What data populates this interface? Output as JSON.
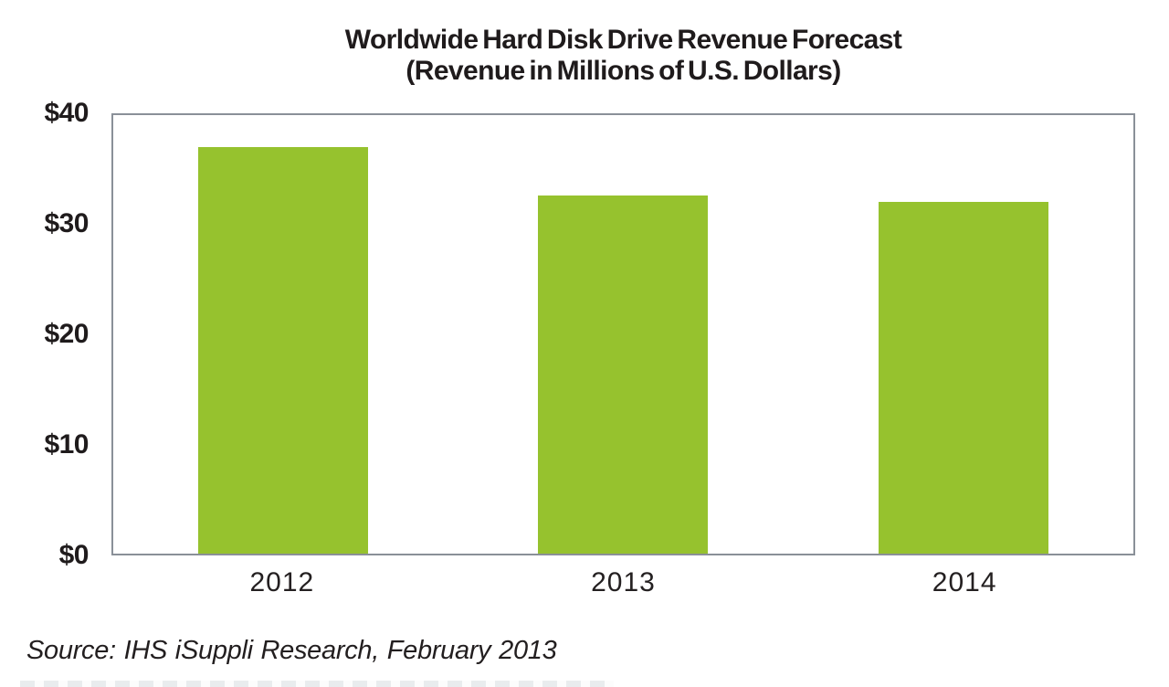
{
  "page": {
    "background_color": "#ffffff"
  },
  "chart_data": {
    "type": "bar",
    "title_line1": "Worldwide Hard Disk Drive Revenue Forecast",
    "title_line2": "(Revenue in Millions of U.S. Dollars)",
    "categories": [
      "2012",
      "2013",
      "2014"
    ],
    "values": [
      37.1,
      32.7,
      32.1
    ],
    "ylim": [
      0,
      40
    ],
    "y_ticks": [
      {
        "value": 40,
        "label": "$40"
      },
      {
        "value": 30,
        "label": "$30"
      },
      {
        "value": 20,
        "label": "$20"
      },
      {
        "value": 10,
        "label": "$10"
      },
      {
        "value": 0,
        "label": "$0"
      }
    ],
    "grid": false,
    "legend": false,
    "bar_color": "#96C22E",
    "plot_border_color": "#8A9098",
    "text_color": "#1f1b1c",
    "source_note": "Source: IHS iSuppli Research, February 2013"
  }
}
